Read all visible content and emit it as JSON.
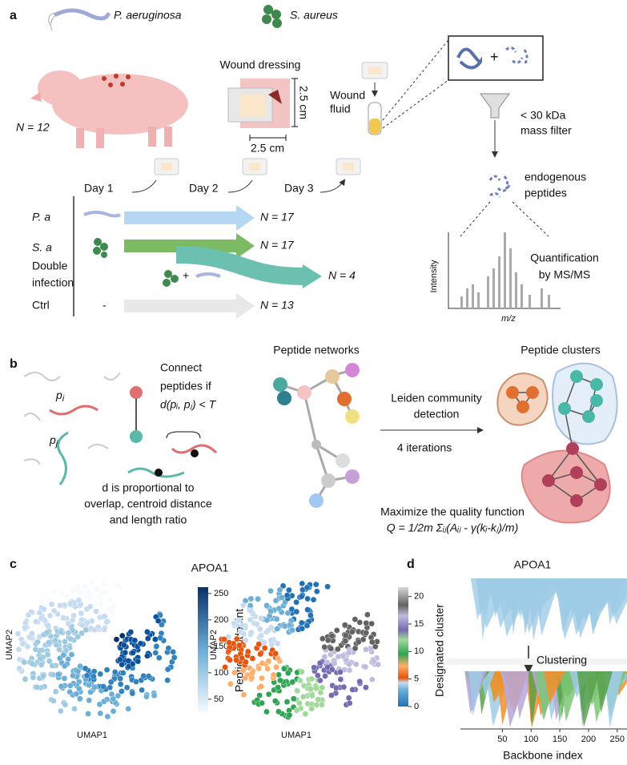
{
  "panel_a": {
    "label": "a",
    "legend": [
      "P. aeruginosa",
      "S. aureus"
    ],
    "animals": "N = 12",
    "dressing": {
      "title": "Wound dressing",
      "height": "2.5 cm",
      "width": "2.5 cm"
    },
    "fluid": [
      "Wound",
      "fluid"
    ],
    "filter": [
      "< 30 kDa",
      "mass filter"
    ],
    "peptides": [
      "endogenous",
      "peptides"
    ],
    "spectrum": {
      "y_label": "Intensity",
      "x_label": "m/z"
    },
    "quantification": [
      "Quantification",
      "by MS/MS"
    ],
    "days": [
      "Day 1",
      "Day 2",
      "Day 3"
    ],
    "groups": [
      {
        "label": [
          "P. a"
        ],
        "n": "N = 17"
      },
      {
        "label": [
          "S. a"
        ],
        "n": "N = 17"
      },
      {
        "label": [
          "Double",
          "infection"
        ],
        "n": "N = 4",
        "combo": "+"
      },
      {
        "label": [
          "Ctrl"
        ],
        "n": "N = 13",
        "marker": "-"
      }
    ]
  },
  "panel_b": {
    "label": "b",
    "p_i": {
      "base": "p",
      "sub": "i"
    },
    "p_j": {
      "base": "p",
      "sub": "j"
    },
    "connect": [
      "Connect",
      "peptides if",
      "d(pᵢ, pⱼ) < T"
    ],
    "distance": [
      "d is proportional to",
      "overlap, centroid distance",
      "and length ratio"
    ],
    "networks": "Peptide networks",
    "leiden": [
      "Leiden community",
      "detection"
    ],
    "iterations": "4 iterations",
    "clusters": "Peptide clusters",
    "quality": [
      "Maximize the quality function",
      "Q = 1/2m Σᵢⱼ(Aᵢⱼ - γ(kᵢ-kⱼ)/m)"
    ]
  },
  "panel_c": {
    "label": "c",
    "title": "APOA1",
    "plots": [
      {
        "x_label": "UMAP1",
        "y_label": "UMAP2",
        "colorbar": {
          "label": "Peptide midpoint",
          "lim": [
            24,
            262
          ],
          "ticks": [
            50,
            100,
            150,
            200,
            250
          ]
        }
      },
      {
        "x_label": "UMAP1",
        "y_label": "UMAP2",
        "colorbar": {
          "label": "Designated cluster",
          "lim": [
            0,
            21.7
          ],
          "ticks": [
            0,
            5,
            10,
            15,
            20
          ]
        }
      }
    ]
  },
  "panel_d": {
    "label": "d",
    "title": "APOA1",
    "step": "Clustering",
    "x_label": "Backbone index",
    "xlim": [
      -23,
      267
    ],
    "xticks": [
      50,
      100,
      150,
      200,
      250
    ]
  }
}
